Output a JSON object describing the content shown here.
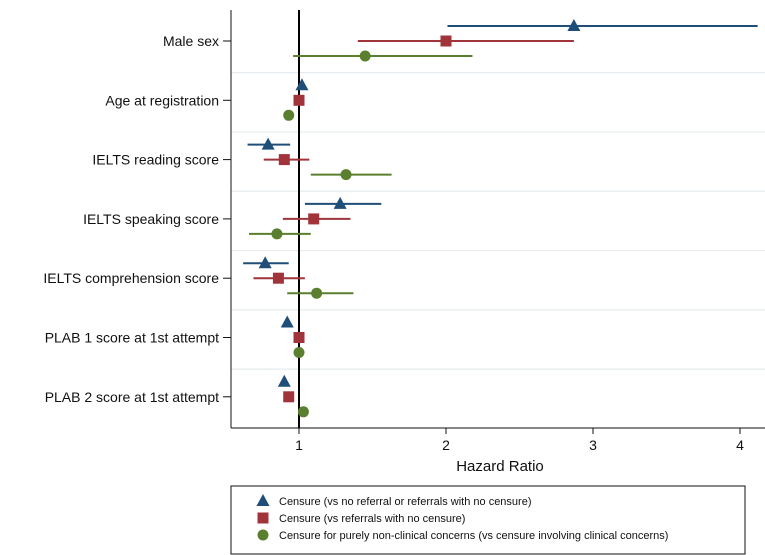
{
  "chart_data": {
    "type": "forest",
    "xlabel": "Hazard Ratio",
    "xlim": [
      0.5,
      4.2
    ],
    "xticks": [
      1,
      2,
      3,
      4
    ],
    "reference_line": 1,
    "categories": [
      "Male sex",
      "Age at registration",
      "IELTS reading score",
      "IELTS speaking score",
      "IELTS comprehension score",
      "PLAB 1 score at 1st attempt",
      "PLAB 2 score at 1st attempt"
    ],
    "series": [
      {
        "name": "Censure (vs no referral or referrals with no censure)",
        "color": "#1f4e79",
        "marker": "triangle",
        "points": [
          {
            "hr": 2.87,
            "lo": 2.01,
            "hi": 4.12
          },
          {
            "hr": 1.02,
            "lo": 1.02,
            "hi": 1.02
          },
          {
            "hr": 0.79,
            "lo": 0.65,
            "hi": 0.94
          },
          {
            "hr": 1.28,
            "lo": 1.04,
            "hi": 1.56
          },
          {
            "hr": 0.77,
            "lo": 0.62,
            "hi": 0.93
          },
          {
            "hr": 0.92,
            "lo": 0.92,
            "hi": 0.92
          },
          {
            "hr": 0.9,
            "lo": 0.9,
            "hi": 0.9
          }
        ]
      },
      {
        "name": "Censure (vs referrals with no censure)",
        "color": "#a0343a",
        "marker": "square",
        "points": [
          {
            "hr": 2.0,
            "lo": 1.4,
            "hi": 2.87
          },
          {
            "hr": 1.0,
            "lo": 1.0,
            "hi": 1.0
          },
          {
            "hr": 0.9,
            "lo": 0.76,
            "hi": 1.07
          },
          {
            "hr": 1.1,
            "lo": 0.89,
            "hi": 1.35
          },
          {
            "hr": 0.86,
            "lo": 0.69,
            "hi": 1.04
          },
          {
            "hr": 1.0,
            "lo": 1.0,
            "hi": 1.0
          },
          {
            "hr": 0.93,
            "lo": 0.93,
            "hi": 0.93
          }
        ]
      },
      {
        "name": "Censure for purely non-clinical concerns (vs censure involving clinical concerns)",
        "color": "#5a7f2e",
        "marker": "circle",
        "points": [
          {
            "hr": 1.45,
            "lo": 0.96,
            "hi": 2.18
          },
          {
            "hr": 0.93,
            "lo": 0.93,
            "hi": 0.93
          },
          {
            "hr": 1.32,
            "lo": 1.08,
            "hi": 1.63
          },
          {
            "hr": 0.85,
            "lo": 0.66,
            "hi": 1.08
          },
          {
            "hr": 1.12,
            "lo": 0.92,
            "hi": 1.37
          },
          {
            "hr": 1.0,
            "lo": 1.0,
            "hi": 1.0
          },
          {
            "hr": 1.03,
            "lo": 1.03,
            "hi": 1.03
          }
        ]
      }
    ],
    "legend": {
      "placement": "bottom"
    }
  }
}
